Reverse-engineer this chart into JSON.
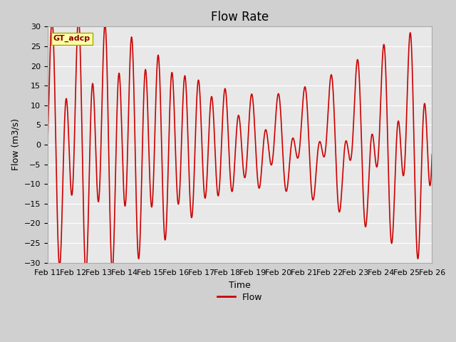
{
  "title": "Flow Rate",
  "xlabel": "Time",
  "ylabel": "Flow (m3/s)",
  "ylim": [
    -30,
    30
  ],
  "yticks": [
    -30,
    -25,
    -20,
    -15,
    -10,
    -5,
    0,
    5,
    10,
    15,
    20,
    25,
    30
  ],
  "xtick_labels": [
    "Feb 11",
    "Feb 12",
    "Feb 13",
    "Feb 14",
    "Feb 15",
    "Feb 16",
    "Feb 17",
    "Feb 18",
    "Feb 19",
    "Feb 20",
    "Feb 21",
    "Feb 22",
    "Feb 23",
    "Feb 24",
    "Feb 25",
    "Feb 26"
  ],
  "line_color": "#cc0000",
  "line_width": 1.2,
  "legend_label": "Flow",
  "annotation_text": "GT_adcp",
  "annotation_bg": "#ffffaa",
  "annotation_border": "#aaa800",
  "plot_bg_color": "#e8e8e8",
  "grid_color": "#ffffff",
  "title_fontsize": 12,
  "axis_fontsize": 9,
  "tick_fontsize": 8
}
